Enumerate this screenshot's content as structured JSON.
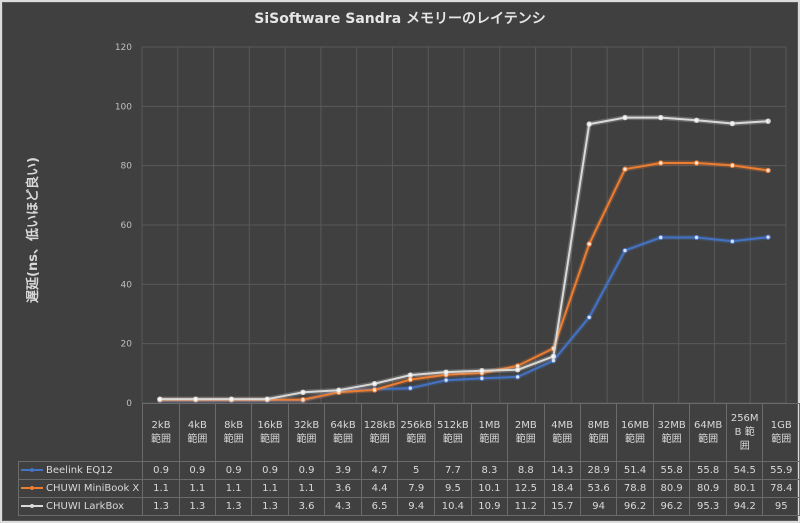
{
  "chart_data": {
    "type": "line",
    "title": "SiSoftware Sandra メモリーのレイテンシ",
    "xlabel": "",
    "ylabel": "遅延(ns、低いほど良い)",
    "ylim": [
      0,
      120
    ],
    "yticks": [
      0,
      20,
      40,
      60,
      80,
      100,
      120
    ],
    "grid": true,
    "legend_position": "data-table-bottom",
    "categories": [
      "2kB 範囲",
      "4kB 範囲",
      "8kB 範囲",
      "16kB 範囲",
      "32kB 範囲",
      "64kB 範囲",
      "128kB 範囲",
      "256kB 範囲",
      "512kB 範囲",
      "1MB 範囲",
      "2MB 範囲",
      "4MB 範囲",
      "8MB 範囲",
      "16MB 範囲",
      "32MB 範囲",
      "64MB 範囲",
      "256MB 範囲",
      "1GB 範囲"
    ],
    "category_lines": [
      [
        "2kB",
        "範囲"
      ],
      [
        "4kB",
        "範囲"
      ],
      [
        "8kB",
        "範囲"
      ],
      [
        "16kB",
        "範囲"
      ],
      [
        "32kB",
        "範囲"
      ],
      [
        "64kB",
        "範囲"
      ],
      [
        "128kB",
        "範囲"
      ],
      [
        "256kB",
        "範囲"
      ],
      [
        "512kB",
        "範囲"
      ],
      [
        "1MB",
        "範囲"
      ],
      [
        "2MB",
        "範囲"
      ],
      [
        "4MB",
        "範囲"
      ],
      [
        "8MB",
        "範囲"
      ],
      [
        "16MB",
        "範囲"
      ],
      [
        "32MB",
        "範囲"
      ],
      [
        "64MB",
        "範囲"
      ],
      [
        "256M",
        "B 範",
        "囲"
      ],
      [
        "1GB",
        "範囲"
      ]
    ],
    "series": [
      {
        "name": "Beelink EQ12",
        "color": "#4472c4",
        "values": [
          0.9,
          0.9,
          0.9,
          0.9,
          0.9,
          3.9,
          4.7,
          5,
          7.7,
          8.3,
          8.8,
          14.3,
          28.9,
          51.4,
          55.8,
          55.8,
          54.5,
          55.9
        ]
      },
      {
        "name": "CHUWI MiniBook X",
        "color": "#ed7d31",
        "values": [
          1.1,
          1.1,
          1.1,
          1.1,
          1.1,
          3.6,
          4.4,
          7.9,
          9.5,
          10.1,
          12.5,
          18.4,
          53.6,
          78.8,
          80.9,
          80.9,
          80.1,
          78.4
        ]
      },
      {
        "name": "CHUWI LarkBox",
        "color": "#d9d9d9",
        "values": [
          1.3,
          1.3,
          1.3,
          1.3,
          3.6,
          4.3,
          6.5,
          9.4,
          10.4,
          10.9,
          11.2,
          15.7,
          94,
          96.2,
          96.2,
          95.3,
          94.2,
          95
        ]
      }
    ]
  },
  "colors": {
    "background": "#404040",
    "grid": "#595959",
    "text": "#d9d9d9"
  }
}
